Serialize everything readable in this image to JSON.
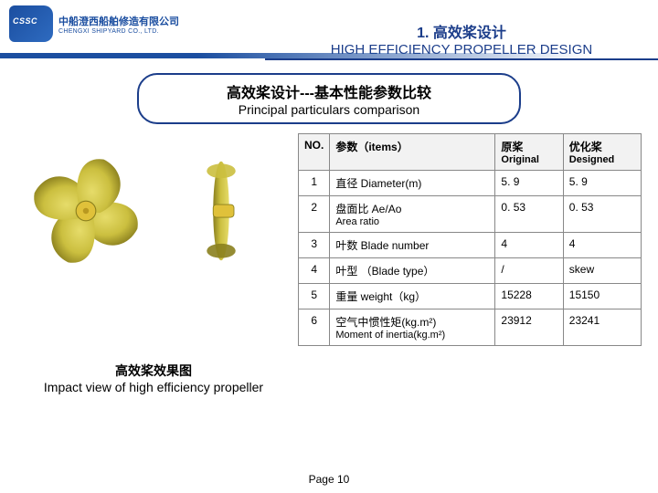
{
  "logo": {
    "cn": "中船澄西船舶修造有限公司",
    "en": "CHENGXI SHIPYARD CO., LTD."
  },
  "title": {
    "cn": "1. 高效桨设计",
    "en": "HIGH EFFICIENCY PROPELLER DESIGN"
  },
  "subtitle": {
    "cn": "高效桨设计---基本性能参数比较",
    "en": "Principal particulars comparison"
  },
  "caption": {
    "cn": "高效桨效果图",
    "en": "Impact view of high efficiency propeller"
  },
  "table": {
    "head": {
      "no": "NO.",
      "item": "参数（items）",
      "orig_cn": "原桨",
      "orig_en": "Original",
      "des_cn": "优化桨",
      "des_en": "Designed"
    },
    "rows": [
      {
        "no": "1",
        "item": "直径  Diameter(m)",
        "sub": "",
        "orig": "5. 9",
        "des": "5. 9"
      },
      {
        "no": "2",
        "item": "盘面比 Ae/Ao",
        "sub": "Area ratio",
        "orig": "0. 53",
        "des": "0. 53"
      },
      {
        "no": "3",
        "item": "叶数 Blade number",
        "sub": "",
        "orig": "4",
        "des": "4"
      },
      {
        "no": "4",
        "item": "叶型 （Blade type）",
        "sub": "",
        "orig": "/",
        "des": "skew"
      },
      {
        "no": "5",
        "item": "重量 weight（kg）",
        "sub": "",
        "orig": "15228",
        "des": "15150"
      },
      {
        "no": "6",
        "item": "空气中惯性矩(kg.m²)",
        "sub": "Moment of inertia(kg.m²)",
        "orig": "23912",
        "des": "23241"
      }
    ]
  },
  "footer": {
    "page_label": "Page",
    "page_no": "10"
  },
  "colors": {
    "propeller": "#cbbf3f",
    "propeller_dark": "#8a7f1e",
    "hub": "#e0c13a",
    "accent": "#1b3d8a"
  }
}
